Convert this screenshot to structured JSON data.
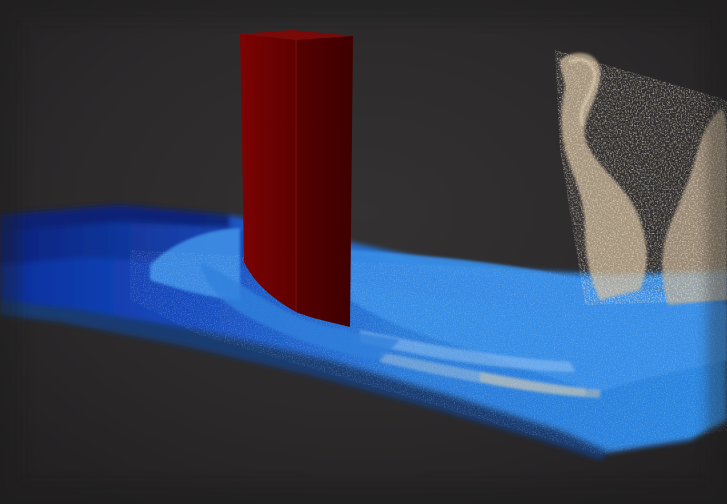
{
  "scene": {
    "background_color": "#2a2829",
    "fluid_deep_color": "#0a2f9c",
    "fluid_surface_color": "#2a7ad8",
    "fluid_highlight_color": "#5aa6ee",
    "spray_color": "#c9b496",
    "obstacle_front_color": "#6b0000",
    "obstacle_side_color": "#4f0000",
    "obstacle_top_color": "#7a0a0a"
  }
}
